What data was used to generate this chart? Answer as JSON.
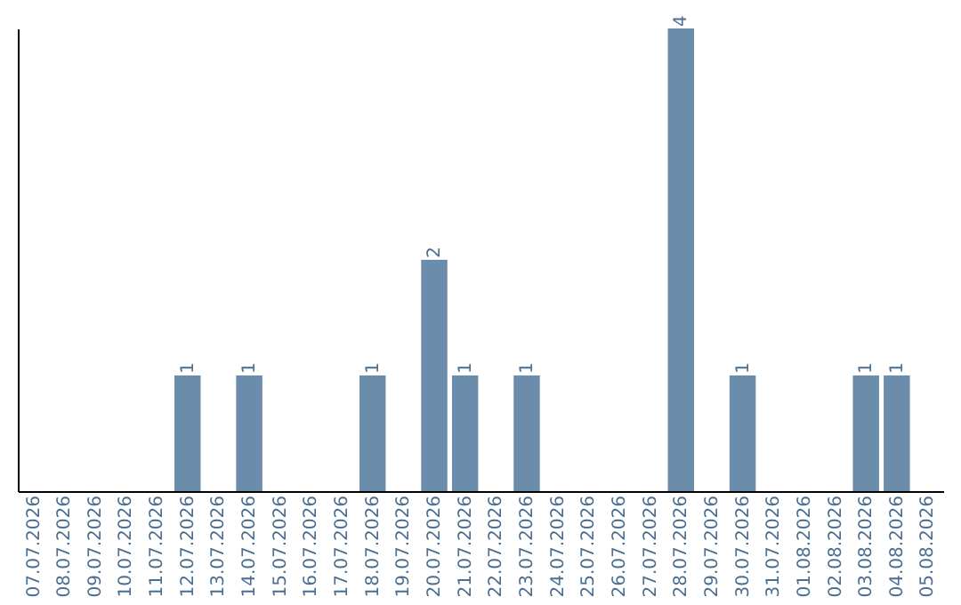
{
  "chart_data": {
    "type": "bar",
    "categories": [
      "07.07.2026",
      "08.07.2026",
      "09.07.2026",
      "10.07.2026",
      "11.07.2026",
      "12.07.2026",
      "13.07.2026",
      "14.07.2026",
      "15.07.2026",
      "16.07.2026",
      "17.07.2026",
      "18.07.2026",
      "19.07.2026",
      "20.07.2026",
      "21.07.2026",
      "22.07.2026",
      "23.07.2026",
      "24.07.2026",
      "25.07.2026",
      "26.07.2026",
      "27.07.2026",
      "28.07.2026",
      "29.07.2026",
      "30.07.2026",
      "31.07.2026",
      "01.08.2026",
      "02.08.2026",
      "03.08.2026",
      "04.08.2026",
      "05.08.2026"
    ],
    "values": [
      0,
      0,
      0,
      0,
      0,
      1,
      0,
      1,
      0,
      0,
      0,
      1,
      0,
      2,
      1,
      0,
      1,
      0,
      0,
      0,
      0,
      4,
      0,
      1,
      0,
      0,
      0,
      1,
      1,
      0
    ],
    "value_labels": [
      null,
      null,
      null,
      null,
      null,
      "1",
      null,
      "1",
      null,
      null,
      null,
      "1",
      null,
      "2",
      "1",
      null,
      "1",
      null,
      null,
      null,
      null,
      "4",
      null,
      "1",
      null,
      null,
      null,
      "1",
      "1",
      null
    ],
    "color": "#6b8caa",
    "tick_labels": "x",
    "grid": false
  }
}
